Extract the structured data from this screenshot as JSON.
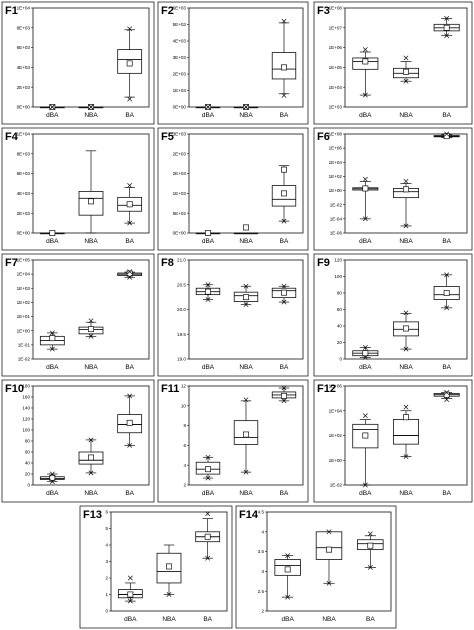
{
  "chart_data": [
    {
      "id": "F1",
      "type": "box",
      "title": "F1",
      "categories": [
        "dBA",
        "NBA",
        "BA"
      ],
      "scale": "linear",
      "yticks": [
        "0E+00",
        "2E+03",
        "4E+03",
        "6E+03",
        "8E+03",
        "1E+04"
      ],
      "ylim": [
        0,
        10000
      ],
      "boxes": [
        {
          "min": 0,
          "q1": 0,
          "median": 0,
          "q3": 0,
          "max": 0,
          "mean": 0,
          "outliers": [
            0,
            0
          ]
        },
        {
          "min": 0,
          "q1": 0,
          "median": 0,
          "q3": 0,
          "max": 0,
          "mean": 0,
          "outliers": [
            0,
            0
          ]
        },
        {
          "min": 1000,
          "q1": 3400,
          "median": 4800,
          "q3": 5800,
          "max": 7800,
          "mean": 4400,
          "outliers": [
            800,
            7900
          ]
        }
      ]
    },
    {
      "id": "F2",
      "type": "box",
      "title": "F2",
      "categories": [
        "dBA",
        "NBA",
        "BA"
      ],
      "scale": "linear",
      "yticks": [
        "0E+00",
        "1E+03",
        "2E+03",
        "3E+03",
        "4E+03",
        "5E+03",
        "6E+03"
      ],
      "ylim": [
        0,
        6000
      ],
      "boxes": [
        {
          "min": 0,
          "q1": 0,
          "median": 0,
          "q3": 0,
          "max": 0,
          "mean": 0,
          "outliers": [
            0,
            0
          ]
        },
        {
          "min": 0,
          "q1": 0,
          "median": 0,
          "q3": 0,
          "max": 0,
          "mean": 0,
          "outliers": [
            0,
            0
          ]
        },
        {
          "min": 800,
          "q1": 1700,
          "median": 2300,
          "q3": 3300,
          "max": 5100,
          "mean": 2400,
          "outliers": [
            700,
            5200
          ]
        }
      ]
    },
    {
      "id": "F3",
      "type": "box",
      "title": "F3",
      "categories": [
        "dBA",
        "NBA",
        "BA"
      ],
      "scale": "log",
      "yticks": [
        "1E+03",
        "1E+04",
        "1E+05",
        "1E+06",
        "1E+07",
        "1E+08"
      ],
      "ylim": [
        1000,
        100000000
      ],
      "boxes": [
        {
          "min": 4000,
          "q1": 80000,
          "median": 200000,
          "q3": 300000,
          "max": 600000,
          "mean": 200000,
          "outliers": [
            4000,
            800000
          ]
        },
        {
          "min": 20000,
          "q1": 30000,
          "median": 50000,
          "q3": 90000,
          "max": 200000,
          "mean": 60000,
          "outliers": [
            20000,
            300000
          ]
        },
        {
          "min": 4000000,
          "q1": 7000000,
          "median": 10000000,
          "q3": 15000000,
          "max": 30000000,
          "mean": 10000000,
          "outliers": [
            4000000,
            30000000
          ]
        }
      ]
    },
    {
      "id": "F4",
      "type": "box",
      "title": "F4",
      "categories": [
        "dBA",
        "NBA",
        "BA"
      ],
      "scale": "linear",
      "yticks": [
        "0E+00",
        "2E+03",
        "4E+03",
        "6E+03",
        "8E+03",
        "1E+04"
      ],
      "ylim": [
        0,
        10000
      ],
      "boxes": [
        {
          "min": 0,
          "q1": 0,
          "median": 0,
          "q3": 0,
          "max": 0,
          "mean": 0,
          "outliers": []
        },
        {
          "min": 0,
          "q1": 1800,
          "median": 3500,
          "q3": 4200,
          "max": 8300,
          "mean": 3200,
          "outliers": []
        },
        {
          "min": 1000,
          "q1": 2200,
          "median": 2800,
          "q3": 3600,
          "max": 4600,
          "mean": 2900,
          "outliers": [
            1000,
            4800
          ]
        }
      ]
    },
    {
      "id": "F5",
      "type": "box",
      "title": "F5",
      "categories": [
        "dBA",
        "NBA",
        "BA"
      ],
      "scale": "linear",
      "yticks": [
        "0E+00",
        "5E+02",
        "1E+03",
        "2E+03",
        "2E+03",
        "3E+03"
      ],
      "ylim": [
        0,
        2500
      ],
      "boxes": [
        {
          "min": 0,
          "q1": 0,
          "median": 0,
          "q3": 0,
          "max": 0,
          "mean": 0,
          "outliers": []
        },
        {
          "min": 0,
          "q1": 0,
          "median": 0,
          "q3": 0,
          "max": 0,
          "mean": 140,
          "outliers": []
        },
        {
          "min": 300,
          "q1": 680,
          "median": 850,
          "q3": 1200,
          "max": 1700,
          "mean": 1000,
          "outliers": [
            300
          ],
          "extra_points": [
            1600
          ]
        }
      ]
    },
    {
      "id": "F6",
      "type": "box",
      "title": "F6",
      "categories": [
        "dBA",
        "NBA",
        "BA"
      ],
      "scale": "log",
      "yticks": [
        "1E-06",
        "1E-04",
        "1E-02",
        "1E+00",
        "1E+02",
        "1E+04",
        "1E+06",
        "1E+08"
      ],
      "ylim": [
        1e-06,
        100000000
      ],
      "boxes": [
        {
          "min": 0.0001,
          "q1": 1.2,
          "median": 1.8,
          "q3": 2.5,
          "max": 20,
          "mean": 2,
          "outliers": [
            0.0001,
            40
          ]
        },
        {
          "min": 1e-05,
          "q1": 0.1,
          "median": 0.7,
          "q3": 2,
          "max": 10,
          "mean": 1.5,
          "outliers": [
            1e-05,
            20
          ]
        },
        {
          "min": 30000000,
          "q1": 40000000,
          "median": 50000000,
          "q3": 60000000,
          "max": 80000000,
          "mean": 50000000,
          "outliers": [
            100000000
          ]
        }
      ]
    },
    {
      "id": "F7",
      "type": "box",
      "title": "F7",
      "categories": [
        "dBA",
        "NBA",
        "BA"
      ],
      "scale": "log",
      "yticks": [
        "1E-02",
        "1E-01",
        "1E+00",
        "1E+01",
        "1E+02",
        "1E+03",
        "1E+04",
        "1E+05"
      ],
      "ylim": [
        0.01,
        100000
      ],
      "boxes": [
        {
          "min": 0.05,
          "q1": 0.1,
          "median": 0.2,
          "q3": 0.4,
          "max": 0.7,
          "mean": 0.3,
          "outliers": [
            0.05,
            0.7
          ]
        },
        {
          "min": 0.4,
          "q1": 0.6,
          "median": 1.2,
          "q3": 1.8,
          "max": 4,
          "mean": 1.3,
          "outliers": [
            0.4,
            5
          ]
        },
        {
          "min": 6000,
          "q1": 8000,
          "median": 10000,
          "q3": 12000,
          "max": 14000,
          "mean": 11000,
          "outliers": [
            6000,
            15000
          ]
        }
      ]
    },
    {
      "id": "F8",
      "type": "box",
      "title": "F8",
      "categories": [
        "dBA",
        "NBA",
        "BA"
      ],
      "scale": "linear",
      "yticks": [
        "19.0",
        "19.5",
        "20.0",
        "20.5",
        "21.0"
      ],
      "ylim": [
        19.0,
        21.0
      ],
      "boxes": [
        {
          "min": 20.2,
          "q1": 20.3,
          "median": 20.36,
          "q3": 20.43,
          "max": 20.5,
          "mean": 20.36,
          "outliers": [
            20.2,
            20.5
          ]
        },
        {
          "min": 20.1,
          "q1": 20.16,
          "median": 20.28,
          "q3": 20.35,
          "max": 20.47,
          "mean": 20.25,
          "outliers": [
            20.1,
            20.47
          ]
        },
        {
          "min": 20.15,
          "q1": 20.24,
          "median": 20.38,
          "q3": 20.43,
          "max": 20.47,
          "mean": 20.34,
          "outliers": [
            20.15,
            20.47
          ]
        }
      ]
    },
    {
      "id": "F9",
      "type": "box",
      "title": "F9",
      "categories": [
        "dBA",
        "NBA",
        "BA"
      ],
      "scale": "linear",
      "yticks": [
        "0",
        "20",
        "40",
        "60",
        "80",
        "100",
        "120"
      ],
      "ylim": [
        0,
        120
      ],
      "boxes": [
        {
          "min": 2,
          "q1": 4,
          "median": 7,
          "q3": 10,
          "max": 14,
          "mean": 7,
          "outliers": [
            2,
            14
          ]
        },
        {
          "min": 12,
          "q1": 28,
          "median": 36,
          "q3": 45,
          "max": 55,
          "mean": 37,
          "outliers": [
            12,
            56
          ]
        },
        {
          "min": 62,
          "q1": 72,
          "median": 78,
          "q3": 88,
          "max": 102,
          "mean": 80,
          "outliers": [
            62,
            102
          ]
        }
      ]
    },
    {
      "id": "F10",
      "type": "box",
      "title": "F10",
      "categories": [
        "dBA",
        "NBA",
        "BA"
      ],
      "scale": "linear",
      "yticks": [
        "0",
        "20",
        "40",
        "60",
        "80",
        "100",
        "120",
        "140",
        "160",
        "180"
      ],
      "ylim": [
        0,
        180
      ],
      "boxes": [
        {
          "min": 6,
          "q1": 10,
          "median": 12,
          "q3": 15,
          "max": 20,
          "mean": 13,
          "outliers": [
            6,
            20
          ]
        },
        {
          "min": 22,
          "q1": 38,
          "median": 45,
          "q3": 60,
          "max": 82,
          "mean": 50,
          "outliers": [
            22,
            82
          ]
        },
        {
          "min": 72,
          "q1": 95,
          "median": 110,
          "q3": 128,
          "max": 162,
          "mean": 113,
          "outliers": [
            72,
            162
          ]
        }
      ]
    },
    {
      "id": "F11",
      "type": "box",
      "title": "F11",
      "categories": [
        "dBA",
        "NBA",
        "BA"
      ],
      "scale": "linear",
      "yticks": [
        "2",
        "4",
        "6",
        "8",
        "10",
        "12"
      ],
      "ylim": [
        2,
        12
      ],
      "boxes": [
        {
          "min": 2.7,
          "q1": 3.1,
          "median": 3.6,
          "q3": 4.3,
          "max": 4.8,
          "mean": 3.6,
          "outliers": [
            2.7,
            4.8
          ]
        },
        {
          "min": 3.3,
          "q1": 6.1,
          "median": 6.8,
          "q3": 8.5,
          "max": 10.5,
          "mean": 7.1,
          "outliers": [
            3.3,
            10.6
          ]
        },
        {
          "min": 10.5,
          "q1": 10.8,
          "median": 11.1,
          "q3": 11.4,
          "max": 11.8,
          "mean": 11.0,
          "outliers": [
            10.5,
            11.8
          ]
        }
      ]
    },
    {
      "id": "F12",
      "type": "box",
      "title": "F12",
      "categories": [
        "dBA",
        "NBA",
        "BA"
      ],
      "scale": "log",
      "yticks": [
        "1E-02",
        "1E+00",
        "1E+02",
        "1E+04",
        "1E+06"
      ],
      "ylim": [
        0.01,
        1000000
      ],
      "boxes": [
        {
          "min": 0.01,
          "q1": 10,
          "median": 300,
          "q3": 800,
          "max": 2000,
          "mean": 100,
          "outliers": [
            0.01,
            4000
          ]
        },
        {
          "min": 2,
          "q1": 20,
          "median": 100,
          "q3": 2000,
          "max": 10000,
          "mean": 3000,
          "outliers": [
            2,
            20000
          ]
        },
        {
          "min": 100000,
          "q1": 150000,
          "median": 200000,
          "q3": 250000,
          "max": 300000,
          "mean": 200000,
          "outliers": [
            80000,
            300000
          ]
        }
      ]
    },
    {
      "id": "F13",
      "type": "box",
      "title": "F13",
      "categories": [
        "dBA",
        "NBA",
        "BA"
      ],
      "scale": "linear",
      "yticks": [
        "0",
        "1",
        "2",
        "3",
        "4",
        "5",
        "6"
      ],
      "ylim": [
        0,
        6
      ],
      "boxes": [
        {
          "min": 0.6,
          "q1": 0.8,
          "median": 1.0,
          "q3": 1.3,
          "max": 1.7,
          "mean": 1.0,
          "outliers": [
            0.6,
            2.0
          ]
        },
        {
          "min": 1.0,
          "q1": 1.7,
          "median": 2.4,
          "q3": 3.5,
          "max": 4.0,
          "mean": 2.7,
          "outliers": [
            1.0
          ]
        },
        {
          "min": 3.2,
          "q1": 4.2,
          "median": 4.5,
          "q3": 4.8,
          "max": 5.6,
          "mean": 4.5,
          "outliers": [
            3.2,
            5.9
          ]
        }
      ]
    },
    {
      "id": "F14",
      "type": "box",
      "title": "F14",
      "categories": [
        "dBA",
        "NBA",
        "BA"
      ],
      "scale": "linear",
      "yticks": [
        "2",
        "2.5",
        "3",
        "3.5",
        "4",
        "4.5"
      ],
      "ylim": [
        2,
        4.5
      ],
      "boxes": [
        {
          "min": 2.35,
          "q1": 2.9,
          "median": 3.15,
          "q3": 3.3,
          "max": 3.4,
          "mean": 3.05,
          "outliers": [
            2.35,
            3.4
          ]
        },
        {
          "min": 2.7,
          "q1": 3.3,
          "median": 3.6,
          "q3": 4.0,
          "max": 4.0,
          "mean": 3.55,
          "outliers": [
            2.7,
            4.0
          ]
        },
        {
          "min": 3.1,
          "q1": 3.55,
          "median": 3.7,
          "q3": 3.8,
          "max": 3.9,
          "mean": 3.65,
          "outliers": [
            3.1,
            3.95
          ]
        }
      ]
    }
  ]
}
